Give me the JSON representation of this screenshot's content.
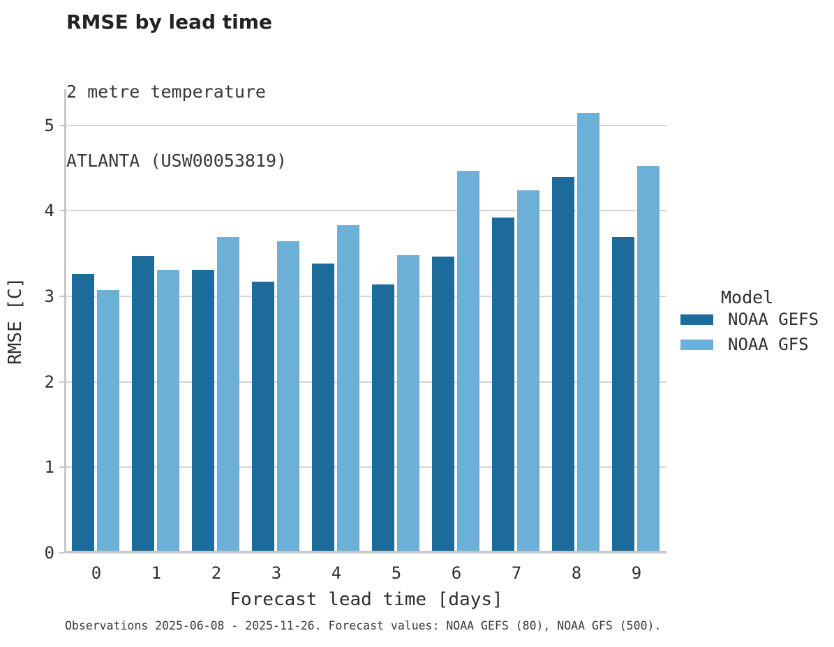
{
  "header": {
    "title": "RMSE by lead time",
    "subtitle1": "2 metre temperature",
    "subtitle2": "ATLANTA (USW00053819)"
  },
  "chart_data": {
    "type": "bar",
    "title": "RMSE by lead time",
    "subtitle": [
      "2 metre temperature",
      "ATLANTA (USW00053819)"
    ],
    "xlabel": "Forecast lead time [days]",
    "ylabel": "RMSE [C]",
    "categories": [
      "0",
      "1",
      "2",
      "3",
      "4",
      "5",
      "6",
      "7",
      "8",
      "9"
    ],
    "series": [
      {
        "name": "NOAA GEFS",
        "color": "#1d6b9b",
        "values": [
          3.26,
          3.47,
          3.31,
          3.17,
          3.38,
          3.14,
          3.46,
          3.92,
          4.39,
          3.69
        ]
      },
      {
        "name": "NOAA GFS",
        "color": "#6cb0d8",
        "values": [
          3.07,
          3.31,
          3.69,
          3.64,
          3.83,
          3.48,
          4.47,
          4.24,
          5.14,
          4.52
        ]
      }
    ],
    "ylim": [
      0,
      5.42
    ],
    "yticks": [
      0,
      1,
      2,
      3,
      4,
      5
    ],
    "grid": "horizontal-only",
    "legend_position": "right",
    "legend_title": "Model"
  },
  "axes": {
    "xlabel": "Forecast lead time [days]",
    "ylabel": "RMSE [C]"
  },
  "legend": {
    "title": "Model",
    "items": [
      {
        "label": "NOAA GEFS",
        "color": "#1d6b9b"
      },
      {
        "label": "NOAA GFS",
        "color": "#6cb0d8"
      }
    ]
  },
  "footer": {
    "caption": "Observations 2025-06-08 - 2025-11-26. Forecast values: NOAA GEFS (80), NOAA GFS (500)."
  },
  "colors": {
    "series_dark": "#1d6b9b",
    "series_light": "#6cb0d8",
    "gridline": "#d5d5d5",
    "axis_line": "#c7c7c7",
    "text": "#2e2e2e"
  }
}
